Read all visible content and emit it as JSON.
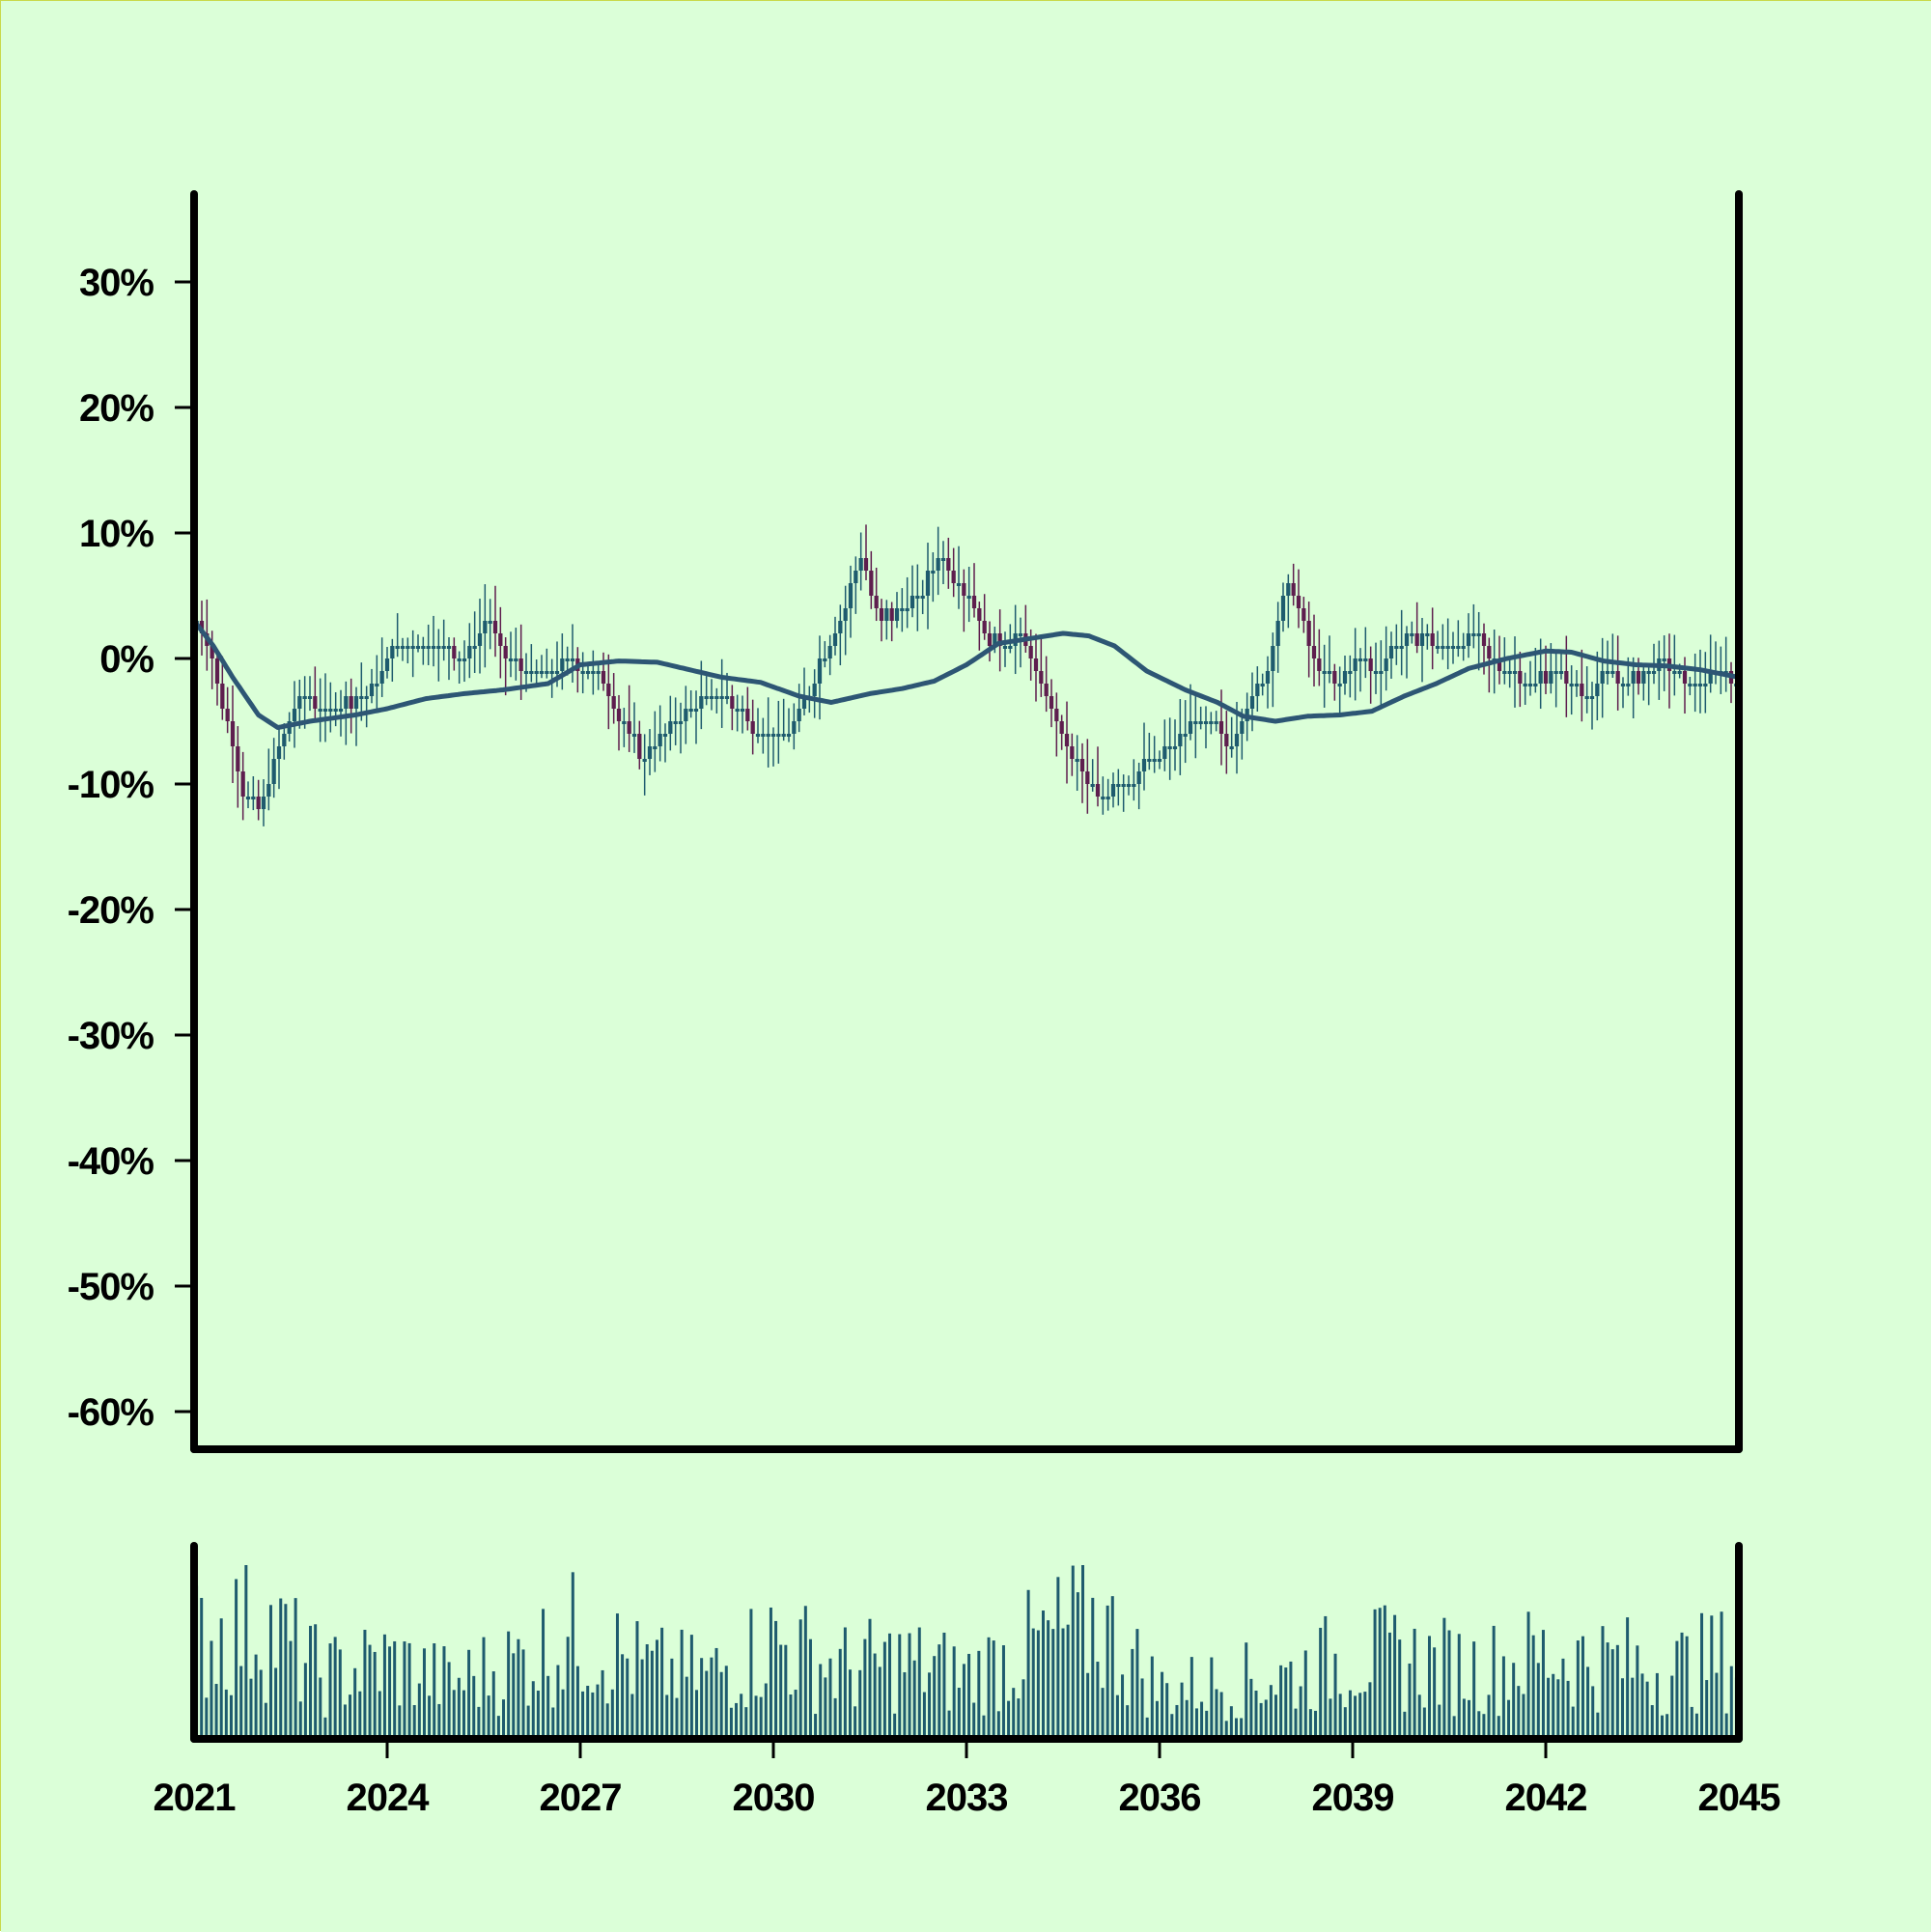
{
  "colors": {
    "background": "#dbffd8",
    "border": "#c9d94a",
    "axis": "#000000",
    "up_candle": "#1e5b6e",
    "down_candle": "#5e1e4e",
    "moving_average": "#2d5674",
    "volume": "#1e5b6e"
  },
  "chart_data": {
    "type": "candlestick",
    "title": "",
    "xlabel": "",
    "ylabel": "",
    "grid": false,
    "legend": "none",
    "x_range": [
      2021,
      2045
    ],
    "y_range_pct": [
      -63,
      37
    ],
    "y_ticks": [
      30,
      20,
      10,
      0,
      -10,
      -20,
      -30,
      -40,
      -50,
      -60
    ],
    "y_tick_labels": [
      "30%",
      "20%",
      "10%",
      "0%",
      "-10%",
      "-20%",
      "-30%",
      "-40%",
      "-50%",
      "-60%"
    ],
    "x_ticks": [
      2021,
      2024,
      2027,
      2030,
      2033,
      2036,
      2039,
      2042,
      2045
    ],
    "x_tick_labels": [
      "2021",
      "2024",
      "2027",
      "2030",
      "2033",
      "2036",
      "2039",
      "2042",
      "2045"
    ],
    "close_path": [
      [
        2021.0,
        3
      ],
      [
        2021.2,
        2
      ],
      [
        2021.4,
        -2
      ],
      [
        2021.6,
        -6
      ],
      [
        2021.8,
        -11
      ],
      [
        2022.0,
        -12
      ],
      [
        2022.2,
        -10
      ],
      [
        2022.5,
        -5
      ],
      [
        2022.8,
        -3
      ],
      [
        2023.0,
        -4
      ],
      [
        2023.3,
        -4
      ],
      [
        2023.6,
        -3
      ],
      [
        2023.9,
        -2
      ],
      [
        2024.1,
        1
      ],
      [
        2024.4,
        1
      ],
      [
        2024.7,
        1
      ],
      [
        2025.0,
        1
      ],
      [
        2025.3,
        0
      ],
      [
        2025.6,
        3
      ],
      [
        2025.9,
        0
      ],
      [
        2026.2,
        -1
      ],
      [
        2026.5,
        -1
      ],
      [
        2026.8,
        0
      ],
      [
        2027.1,
        -1
      ],
      [
        2027.4,
        -2
      ],
      [
        2027.7,
        -5
      ],
      [
        2028.0,
        -8
      ],
      [
        2028.3,
        -6
      ],
      [
        2028.6,
        -5
      ],
      [
        2028.9,
        -3
      ],
      [
        2029.2,
        -3
      ],
      [
        2029.5,
        -4
      ],
      [
        2029.8,
        -6
      ],
      [
        2030.1,
        -6
      ],
      [
        2030.4,
        -5
      ],
      [
        2030.7,
        -1
      ],
      [
        2031.0,
        2
      ],
      [
        2031.2,
        5
      ],
      [
        2031.4,
        8
      ],
      [
        2031.7,
        3
      ],
      [
        2032.0,
        4
      ],
      [
        2032.3,
        5
      ],
      [
        2032.6,
        8
      ],
      [
        2032.9,
        6
      ],
      [
        2033.1,
        5
      ],
      [
        2033.3,
        2
      ],
      [
        2033.6,
        1
      ],
      [
        2033.9,
        2
      ],
      [
        2034.2,
        -2
      ],
      [
        2034.5,
        -6
      ],
      [
        2034.8,
        -9
      ],
      [
        2035.1,
        -11
      ],
      [
        2035.4,
        -10
      ],
      [
        2035.7,
        -9
      ],
      [
        2036.0,
        -8
      ],
      [
        2036.3,
        -7
      ],
      [
        2036.6,
        -5
      ],
      [
        2036.9,
        -5
      ],
      [
        2037.1,
        -7
      ],
      [
        2037.4,
        -4
      ],
      [
        2037.7,
        -1
      ],
      [
        2037.9,
        4
      ],
      [
        2038.1,
        6
      ],
      [
        2038.3,
        2
      ],
      [
        2038.5,
        -1
      ],
      [
        2038.8,
        -2
      ],
      [
        2039.1,
        0
      ],
      [
        2039.4,
        -1
      ],
      [
        2039.7,
        1
      ],
      [
        2040.0,
        2
      ],
      [
        2040.3,
        1
      ],
      [
        2040.6,
        1
      ],
      [
        2040.9,
        2
      ],
      [
        2041.2,
        0
      ],
      [
        2041.5,
        -1
      ],
      [
        2041.8,
        -2
      ],
      [
        2042.1,
        -1
      ],
      [
        2042.4,
        -2
      ],
      [
        2042.7,
        -3
      ],
      [
        2043.0,
        -1
      ],
      [
        2043.3,
        -2
      ],
      [
        2043.6,
        -1
      ],
      [
        2043.9,
        0
      ],
      [
        2044.2,
        -2
      ],
      [
        2044.5,
        -2
      ],
      [
        2044.8,
        -1
      ],
      [
        2045.0,
        -2
      ]
    ],
    "moving_average": [
      [
        2021.0,
        3
      ],
      [
        2021.3,
        1
      ],
      [
        2021.6,
        -1.5
      ],
      [
        2022.0,
        -4.5
      ],
      [
        2022.3,
        -5.5
      ],
      [
        2022.8,
        -5
      ],
      [
        2023.5,
        -4.5
      ],
      [
        2024.0,
        -4
      ],
      [
        2024.6,
        -3.2
      ],
      [
        2025.2,
        -2.8
      ],
      [
        2025.8,
        -2.5
      ],
      [
        2026.5,
        -2
      ],
      [
        2027.0,
        -0.5
      ],
      [
        2027.6,
        -0.2
      ],
      [
        2028.2,
        -0.3
      ],
      [
        2028.7,
        -0.9
      ],
      [
        2029.2,
        -1.5
      ],
      [
        2029.8,
        -1.9
      ],
      [
        2030.4,
        -3
      ],
      [
        2030.9,
        -3.5
      ],
      [
        2031.5,
        -2.8
      ],
      [
        2032.0,
        -2.4
      ],
      [
        2032.5,
        -1.8
      ],
      [
        2033.0,
        -0.5
      ],
      [
        2033.5,
        1.2
      ],
      [
        2034.0,
        1.6
      ],
      [
        2034.5,
        2
      ],
      [
        2034.9,
        1.8
      ],
      [
        2035.3,
        1
      ],
      [
        2035.8,
        -1
      ],
      [
        2036.4,
        -2.5
      ],
      [
        2036.9,
        -3.5
      ],
      [
        2037.3,
        -4.6
      ],
      [
        2037.8,
        -5
      ],
      [
        2038.3,
        -4.6
      ],
      [
        2038.8,
        -4.5
      ],
      [
        2039.3,
        -4.2
      ],
      [
        2039.8,
        -3
      ],
      [
        2040.3,
        -2
      ],
      [
        2040.8,
        -0.8
      ],
      [
        2041.4,
        0
      ],
      [
        2042.0,
        0.6
      ],
      [
        2042.4,
        0.5
      ],
      [
        2042.9,
        -0.2
      ],
      [
        2043.4,
        -0.5
      ],
      [
        2043.9,
        -0.6
      ],
      [
        2044.4,
        -0.9
      ],
      [
        2045.0,
        -1.5
      ]
    ],
    "volume_envelope": [
      [
        2021.0,
        0.7
      ],
      [
        2022.0,
        0.85
      ],
      [
        2023.0,
        0.45
      ],
      [
        2024.0,
        0.55
      ],
      [
        2025.0,
        0.4
      ],
      [
        2026.0,
        0.55
      ],
      [
        2027.0,
        0.75
      ],
      [
        2028.0,
        0.5
      ],
      [
        2029.0,
        0.45
      ],
      [
        2030.0,
        0.7
      ],
      [
        2031.0,
        0.5
      ],
      [
        2032.0,
        0.55
      ],
      [
        2033.0,
        0.45
      ],
      [
        2034.0,
        0.65
      ],
      [
        2035.0,
        0.85
      ],
      [
        2036.0,
        0.35
      ],
      [
        2037.0,
        0.4
      ],
      [
        2038.0,
        0.45
      ],
      [
        2039.0,
        0.6
      ],
      [
        2040.0,
        0.55
      ],
      [
        2041.0,
        0.5
      ],
      [
        2042.0,
        0.6
      ],
      [
        2043.0,
        0.55
      ],
      [
        2044.0,
        0.5
      ],
      [
        2045.0,
        0.6
      ]
    ],
    "candles_per_year": 12.5
  }
}
